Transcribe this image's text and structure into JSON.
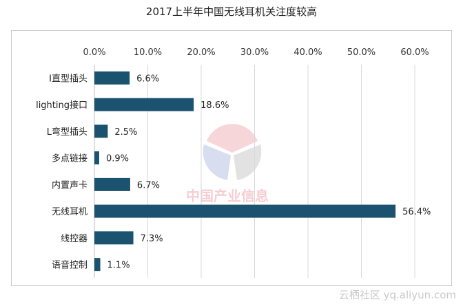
{
  "chart_data": {
    "type": "bar",
    "orientation": "horizontal",
    "title": "2017上半年中国无线耳机关注度较高",
    "categories": [
      "I直型插头",
      "lighting接口",
      "L弯型插头",
      "多点链接",
      "内置声卡",
      "无线耳机",
      "线控器",
      "语音控制"
    ],
    "values": [
      6.6,
      18.6,
      2.5,
      0.9,
      6.7,
      56.4,
      7.3,
      1.1
    ],
    "value_labels": [
      "6.6%",
      "18.6%",
      "2.5%",
      "0.9%",
      "6.7%",
      "56.4%",
      "7.3%",
      "1.1%"
    ],
    "xlim": [
      0,
      60
    ],
    "xticks": [
      0,
      10,
      20,
      30,
      40,
      50,
      60
    ],
    "xtick_labels": [
      "0.0%",
      "10.0%",
      "20.0%",
      "30.0%",
      "40.0%",
      "50.0%",
      "60.0%"
    ],
    "xaxis_position": "top",
    "grid": true,
    "bar_color": "#1a5270",
    "grid_color": "#d9d9d9"
  },
  "logo_text": "中国产业信息",
  "watermark": "云栖社区 yq.aliyun.com"
}
